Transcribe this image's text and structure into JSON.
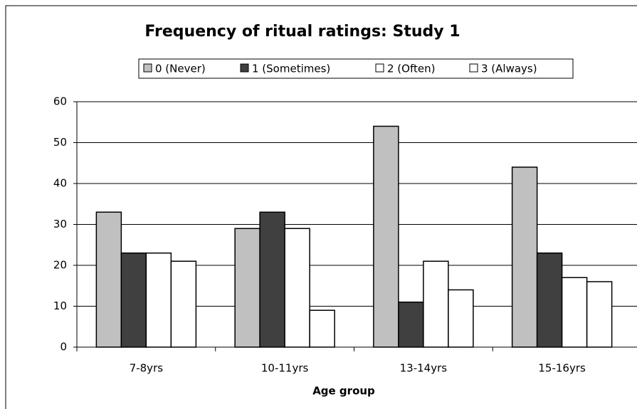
{
  "chart_data": {
    "type": "bar",
    "title": "Frequency of ritual ratings: Study 1",
    "x_label": "Age group",
    "categories": [
      "7-8yrs",
      "10-11yrs",
      "13-14yrs",
      "15-16yrs"
    ],
    "series": [
      {
        "name": "0 (Never)",
        "color": "#c0c0c0",
        "values": [
          33,
          29,
          54,
          44
        ]
      },
      {
        "name": "1 (Sometimes)",
        "color": "#404040",
        "values": [
          23,
          33,
          11,
          23
        ]
      },
      {
        "name": "2 (Often)",
        "color": "#ffffff",
        "values": [
          23,
          29,
          21,
          17
        ]
      },
      {
        "name": "3 (Always)",
        "color": "#ffffff",
        "values": [
          21,
          9,
          14,
          16
        ]
      }
    ],
    "ylim": [
      0,
      60
    ],
    "yticks": [
      0,
      10,
      20,
      30,
      40,
      50,
      60
    ],
    "grid": true,
    "legend": "top"
  }
}
